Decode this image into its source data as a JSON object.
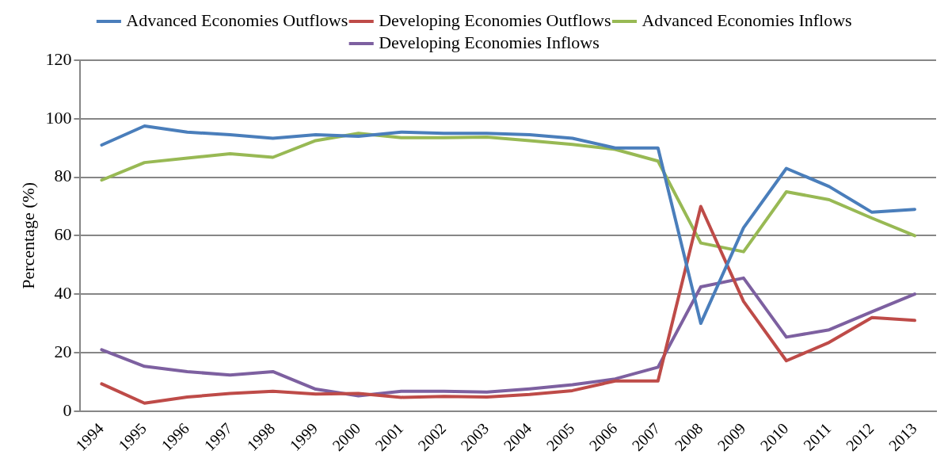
{
  "chart_data": {
    "type": "line",
    "ylabel": "Percentage (%)",
    "categories": [
      "1994",
      "1995",
      "1996",
      "1997",
      "1998",
      "1999",
      "2000",
      "2001",
      "2002",
      "2003",
      "2004",
      "2005",
      "2006",
      "2007",
      "2008",
      "2009",
      "2010",
      "2011",
      "2012",
      "2013"
    ],
    "series": [
      {
        "name": "Advanced Economies Outflows",
        "color": "#4a7ebb",
        "values": [
          91,
          97.5,
          95.4,
          94.5,
          93.3,
          94.5,
          94,
          95.4,
          95,
          95,
          94.5,
          93.3,
          90,
          90,
          30,
          62.7,
          83,
          76.8,
          68,
          69
        ]
      },
      {
        "name": "Developing Economies Outflows",
        "color": "#be4b48",
        "values": [
          9.3,
          2.7,
          4.8,
          6,
          6.8,
          5.8,
          6,
          4.7,
          5,
          4.8,
          5.7,
          7,
          10.3,
          10.3,
          70,
          37.5,
          17.2,
          23.5,
          32,
          31
        ]
      },
      {
        "name": "Advanced Economies Inflows",
        "color": "#98b954",
        "values": [
          79,
          85,
          86.5,
          88,
          86.8,
          92.5,
          95,
          93.5,
          93.5,
          93.7,
          92.5,
          91.2,
          89.5,
          85.5,
          57.5,
          54.5,
          75,
          72.3,
          66,
          60
        ]
      },
      {
        "name": "Developing Economies Inflows",
        "color": "#7d60a0",
        "values": [
          21,
          15.3,
          13.5,
          12.3,
          13.5,
          7.5,
          5.2,
          6.8,
          6.8,
          6.5,
          7.6,
          9,
          11,
          15,
          42.5,
          45.5,
          25.3,
          27.8,
          34,
          40
        ]
      }
    ],
    "ylim": [
      0,
      120
    ],
    "yticks": [
      0,
      20,
      40,
      60,
      80,
      100,
      120
    ],
    "grid": "y",
    "legend": "top",
    "marker": "none",
    "line_style": "solid"
  }
}
